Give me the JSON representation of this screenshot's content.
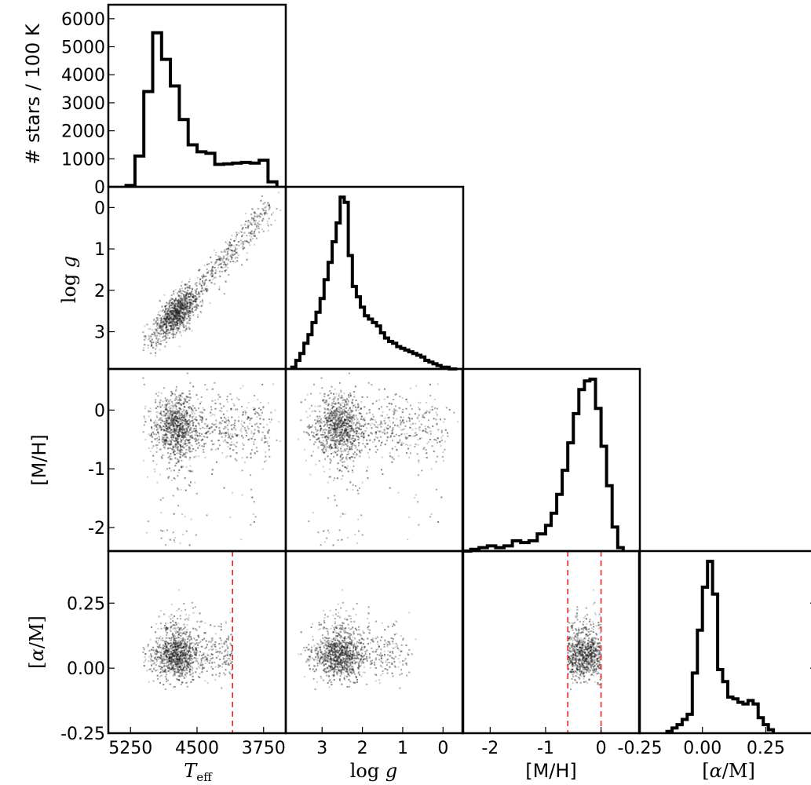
{
  "chart_data": [
    {
      "type": "histogram",
      "panel": "teff-hist",
      "ylabel": "# stars / 100 K",
      "xlim": [
        5500,
        3500
      ],
      "ylim": [
        0,
        6500
      ],
      "yticks": [
        "0",
        "1000",
        "2000",
        "3000",
        "4000",
        "5000",
        "6000"
      ],
      "bin_edges": [
        5300,
        5200,
        5100,
        5000,
        4900,
        4800,
        4700,
        4600,
        4500,
        4400,
        4300,
        4200,
        4100,
        4000,
        3900,
        3800,
        3700,
        3600
      ],
      "values": [
        50,
        1100,
        3400,
        5500,
        4550,
        3600,
        2400,
        1500,
        1250,
        1200,
        800,
        820,
        850,
        870,
        850,
        950,
        180
      ]
    },
    {
      "type": "histogram",
      "panel": "logg-hist",
      "xlim": [
        3.9,
        -0.5
      ],
      "bin_edges": [
        3.75,
        3.65,
        3.55,
        3.45,
        3.35,
        3.25,
        3.15,
        3.05,
        2.95,
        2.85,
        2.75,
        2.65,
        2.55,
        2.45,
        2.35,
        2.25,
        2.15,
        2.05,
        1.95,
        1.85,
        1.75,
        1.65,
        1.55,
        1.45,
        1.35,
        1.25,
        1.15,
        1.05,
        0.95,
        0.85,
        0.75,
        0.65,
        0.55,
        0.45,
        0.35,
        0.25,
        0.15,
        0.05,
        -0.05,
        -0.15,
        -0.35
      ],
      "values_relative": [
        0.01,
        0.05,
        0.09,
        0.15,
        0.2,
        0.27,
        0.33,
        0.41,
        0.52,
        0.62,
        0.74,
        0.85,
        1.0,
        0.97,
        0.66,
        0.48,
        0.42,
        0.36,
        0.31,
        0.29,
        0.27,
        0.25,
        0.21,
        0.18,
        0.16,
        0.15,
        0.13,
        0.12,
        0.11,
        0.1,
        0.09,
        0.08,
        0.07,
        0.05,
        0.04,
        0.03,
        0.02,
        0.01,
        0.01,
        0.0
      ]
    },
    {
      "type": "histogram",
      "panel": "mh-hist",
      "xlim": [
        -2.5,
        0.7
      ],
      "bin_edges": [
        -2.5,
        -2.35,
        -2.2,
        -2.05,
        -1.9,
        -1.75,
        -1.6,
        -1.45,
        -1.3,
        -1.15,
        -1.0,
        -0.9,
        -0.8,
        -0.7,
        -0.6,
        -0.5,
        -0.4,
        -0.3,
        -0.2,
        -0.1,
        0.0,
        0.1,
        0.2,
        0.3,
        0.4
      ],
      "values_relative": [
        0.0,
        0.01,
        0.02,
        0.03,
        0.02,
        0.03,
        0.06,
        0.05,
        0.06,
        0.1,
        0.15,
        0.22,
        0.33,
        0.47,
        0.63,
        0.8,
        0.94,
        0.99,
        1.0,
        0.83,
        0.61,
        0.38,
        0.14,
        0.02
      ]
    },
    {
      "type": "histogram",
      "panel": "alpham-hist",
      "xlim": [
        -0.25,
        0.45
      ],
      "bin_edges": [
        -0.14,
        -0.12,
        -0.1,
        -0.08,
        -0.06,
        -0.04,
        -0.02,
        0.0,
        0.02,
        0.04,
        0.06,
        0.08,
        0.1,
        0.12,
        0.14,
        0.16,
        0.18,
        0.2,
        0.22,
        0.24,
        0.26,
        0.28
      ],
      "values_relative": [
        0.01,
        0.03,
        0.05,
        0.08,
        0.11,
        0.35,
        0.6,
        0.85,
        1.0,
        0.81,
        0.37,
        0.3,
        0.21,
        0.2,
        0.18,
        0.17,
        0.19,
        0.17,
        0.09,
        0.05,
        0.02
      ]
    },
    {
      "type": "scatter",
      "panel": "logg-vs-teff",
      "xlabel": "T_eff",
      "ylabel": "log g",
      "xlim": [
        5500,
        3500
      ],
      "ylim": [
        3.9,
        -0.5
      ],
      "xticks": [
        "5250",
        "4500",
        "3750"
      ],
      "yticks": [
        "0",
        "1",
        "2",
        "3"
      ],
      "trend": [
        [
          5000,
          3.3
        ],
        [
          4700,
          2.7
        ],
        [
          4400,
          2.4
        ],
        [
          4200,
          2.0
        ],
        [
          4000,
          1.4
        ],
        [
          3800,
          0.6
        ],
        [
          3650,
          -0.1
        ]
      ]
    },
    {
      "type": "scatter",
      "panel": "mh-vs-teff",
      "ylabel": "[M/H]",
      "xlim": [
        5500,
        3500
      ],
      "ylim": [
        -2.4,
        0.7
      ],
      "yticks": [
        "0",
        "-1",
        "-2"
      ],
      "note": "dense cloud near 4700 K, -0.3 dex with sparse metal-poor tail"
    },
    {
      "type": "scatter",
      "panel": "mh-vs-logg",
      "xlim": [
        3.9,
        -0.5
      ],
      "ylim": [
        -2.4,
        0.7
      ],
      "note": "dense cloud near log g 2.4, [M/H] -0.3"
    },
    {
      "type": "scatter",
      "panel": "alpham-vs-teff",
      "ylabel": "[α/M]",
      "xlim": [
        5500,
        3500
      ],
      "ylim": [
        -0.25,
        0.45
      ],
      "yticks": [
        "0.25",
        "0.00",
        "-0.25"
      ],
      "reference_line_x": [
        4100
      ]
    },
    {
      "type": "scatter",
      "panel": "alpham-vs-logg",
      "xlabel": "log g",
      "xlim": [
        3.9,
        -0.5
      ],
      "ylim": [
        -0.25,
        0.45
      ],
      "xticks": [
        "3",
        "2",
        "1",
        "0"
      ]
    },
    {
      "type": "scatter",
      "panel": "alpham-vs-mh",
      "xlabel": "[M/H]",
      "xlim": [
        -2.5,
        0.7
      ],
      "ylim": [
        -0.25,
        0.45
      ],
      "xticks": [
        "-2",
        "-1",
        "0",
        "-0.25"
      ],
      "reference_lines_x": [
        -0.6,
        0.0
      ]
    },
    {
      "type": "histogram-axis",
      "panel": "alpham-hist",
      "xlabel": "[α/M]",
      "xticks": [
        "0.00",
        "0.25"
      ]
    }
  ],
  "colors": {
    "frame": "#000000",
    "histogram": "#000000",
    "scatter": "#555555",
    "reference_line": "#e8262a"
  }
}
